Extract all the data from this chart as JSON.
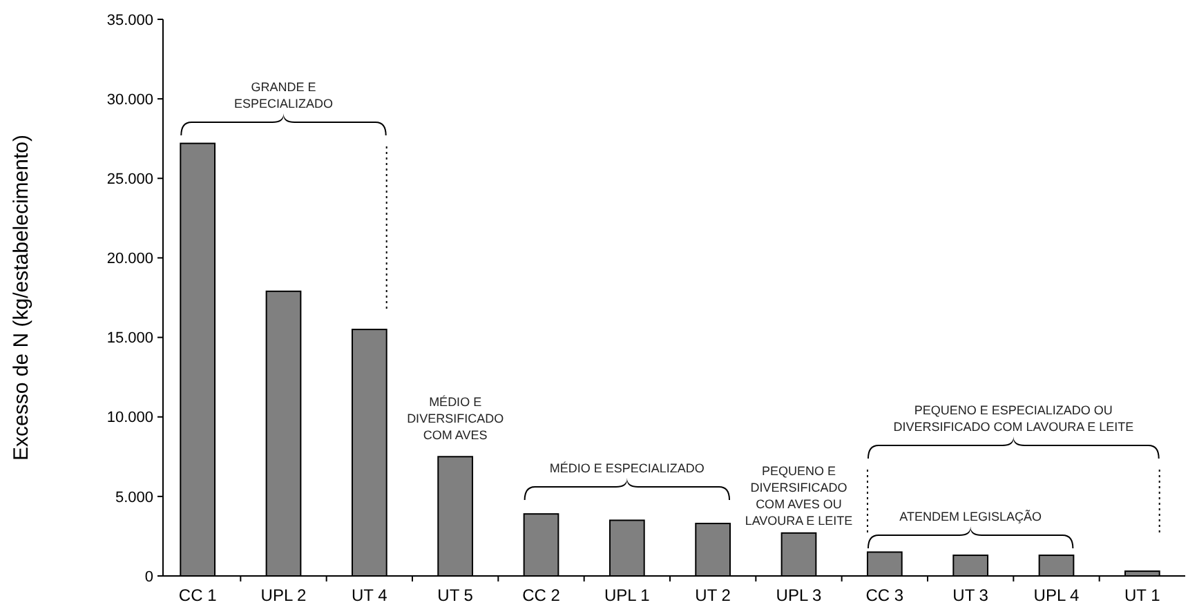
{
  "chart_data": {
    "type": "bar",
    "ylabel": "Excesso de N (kg/estabelecimento)",
    "categories": [
      "CC 1",
      "UPL 2",
      "UT 4",
      "UT 5",
      "CC 2",
      "UPL 1",
      "UT 2",
      "UPL 3",
      "CC 3",
      "UT 3",
      "UPL 4",
      "UT 1"
    ],
    "values": [
      27200,
      17900,
      15500,
      7500,
      3900,
      3500,
      3300,
      2700,
      1500,
      1300,
      1300,
      300
    ],
    "color": "#808080",
    "ylim": [
      0,
      35000
    ],
    "yticks": [
      {
        "value": 0,
        "label": "0"
      },
      {
        "value": 5000,
        "label": "5.000"
      },
      {
        "value": 10000,
        "label": "10.000"
      },
      {
        "value": 15000,
        "label": "15.000"
      },
      {
        "value": 20000,
        "label": "20.000"
      },
      {
        "value": 25000,
        "label": "25.000"
      },
      {
        "value": 30000,
        "label": "30.000"
      },
      {
        "value": 35000,
        "label": "35.000"
      }
    ],
    "grid": false,
    "annotations": [
      "GRANDE E\nESPECIALIZADO",
      "MÉDIO E\nDIVERSIFICADO\nCOM AVES",
      "MÉDIO E ESPECIALIZADO",
      "PEQUENO E\nDIVERSIFICADO\nCOM AVES OU\nLAVOURA E LEITE",
      "PEQUENO E ESPECIALIZADO OU\nDIVERSIFICADO COM LAVOURA E LEITE",
      "ATENDEM LEGISLAÇÃO"
    ]
  }
}
